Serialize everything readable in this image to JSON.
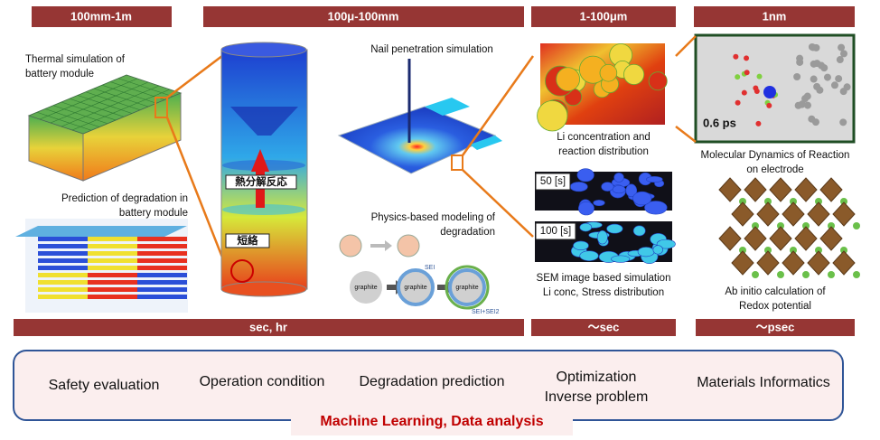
{
  "headers": [
    "100mm-1m",
    "100μ-100mm",
    "1-100μm",
    "1nm"
  ],
  "time_bars": [
    "sec, hr",
    "～sec",
    "～psec"
  ],
  "module": {
    "thermal_caption": [
      "Thermal simulation of",
      "battery module"
    ],
    "degradation_caption": [
      "Prediction of degradation in",
      "battery module"
    ]
  },
  "cell": {
    "decomposition_label": "熱分解反応",
    "short_label": "短絡"
  },
  "nail": {
    "caption": "Nail penetration simulation",
    "physics_caption": [
      "Physics-based modeling of",
      "degradation"
    ],
    "graphite_labels": [
      "graphite",
      "graphite",
      "graphite"
    ],
    "sei_label": "SEI",
    "sei2_label": "SEI+SEI2"
  },
  "micro": {
    "li_caption": [
      "Li concentration and",
      "reaction distribution"
    ],
    "time_labels": [
      "50 [s]",
      "100 [s]"
    ],
    "sem_caption": [
      "SEM image based simulation",
      "Li conc, Stress distribution"
    ]
  },
  "atomic": {
    "md_time": "0.6 ps",
    "md_caption": [
      "Molecular Dynamics of Reaction",
      "on electrode"
    ],
    "abinitio_caption": [
      "Ab initio calculation of",
      "Redox potential"
    ]
  },
  "applications": [
    "Safety evaluation",
    "Operation condition",
    "Degradation prediction",
    [
      "Optimization",
      "Inverse problem"
    ],
    "Materials Informatics"
  ],
  "footer": "Machine Learning, Data analysis"
}
